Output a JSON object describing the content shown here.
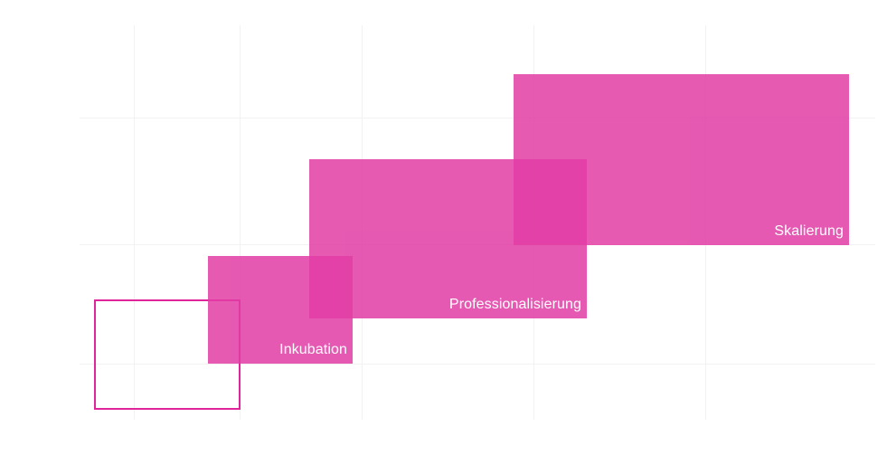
{
  "colors": {
    "fill": "#e23da5",
    "stroke": "#e0249a"
  },
  "phases": [
    {
      "label": "Inkubation"
    },
    {
      "label": "Professionalisierung"
    },
    {
      "label": "Skalierung"
    }
  ]
}
